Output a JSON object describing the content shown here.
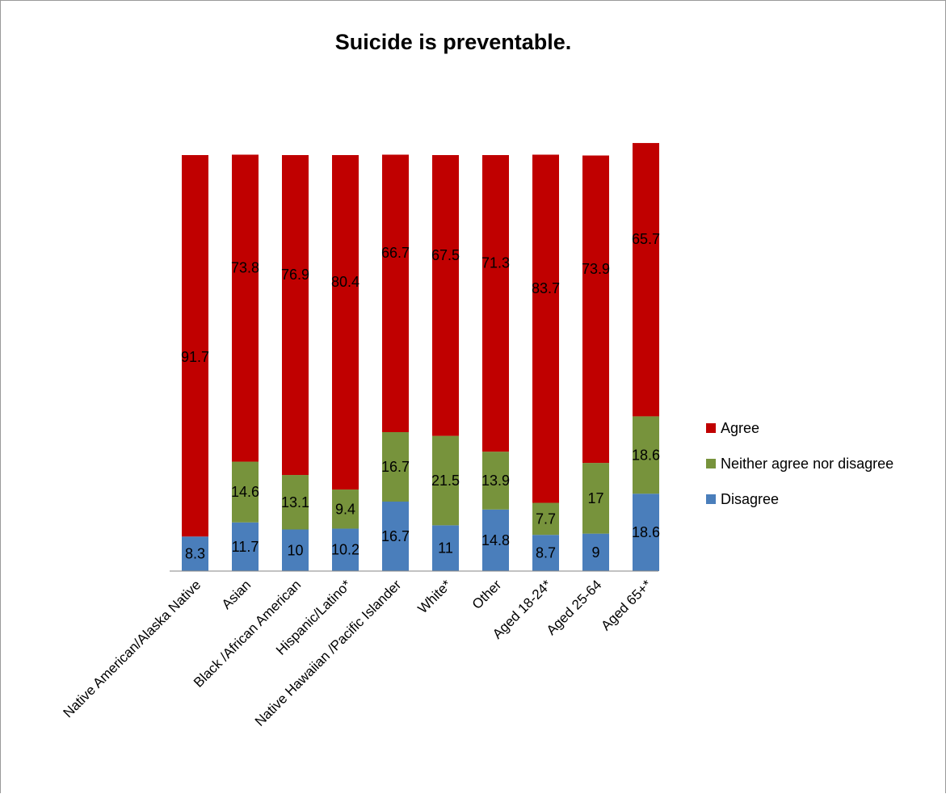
{
  "chart_data": {
    "type": "bar",
    "stacked": true,
    "title": "Suicide is preventable.",
    "categories": [
      "Native American/Alaska Native",
      "Asian",
      "Black /African American",
      "Hispanic/Latino*",
      "Native Hawaiian /Pacific Islander",
      "White*",
      "Other",
      "Aged 18-24*",
      "Aged 25-64",
      "Aged 65+*"
    ],
    "series": [
      {
        "name": "Disagree",
        "color": "#4a7ebb",
        "values": [
          8.3,
          11.7,
          10,
          10.2,
          16.7,
          11,
          14.8,
          8.7,
          9,
          18.6
        ]
      },
      {
        "name": "Neither agree nor disagree",
        "color": "#77933c",
        "values": [
          0,
          14.6,
          13.1,
          9.4,
          16.7,
          21.5,
          13.9,
          7.7,
          17,
          18.6
        ]
      },
      {
        "name": "Agree",
        "color": "#c00000",
        "values": [
          91.7,
          73.8,
          76.9,
          80.4,
          66.7,
          67.5,
          71.3,
          83.7,
          73.9,
          65.7
        ]
      }
    ],
    "legend_order": [
      "Agree",
      "Neither agree nor disagree",
      "Disagree"
    ],
    "legend_position": "right",
    "ylim": [
      0,
      100
    ],
    "grid": false
  }
}
